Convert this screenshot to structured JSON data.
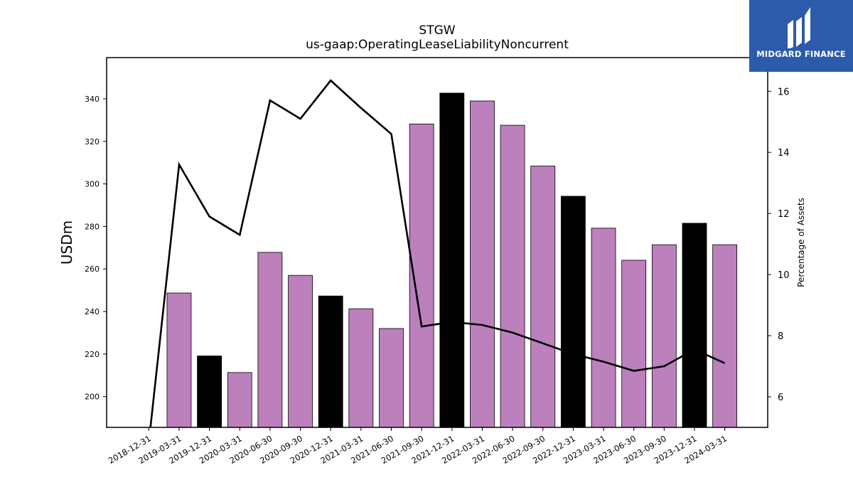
{
  "chart_data": {
    "type": "bar",
    "title": "STGW",
    "subtitle": "us-gaap:OperatingLeaseLiabilityNoncurrent",
    "ylabel": "USDm",
    "y2label": "Percentage of Assets",
    "categories": [
      "2018-12-31",
      "2019-03-31",
      "2019-12-31",
      "2020-03-31",
      "2020-06-30",
      "2020-09-30",
      "2020-12-31",
      "2021-03-31",
      "2021-06-30",
      "2021-09-30",
      "2021-12-31",
      "2022-03-31",
      "2022-06-30",
      "2022-09-30",
      "2022-12-31",
      "2023-03-31",
      "2023-06-30",
      "2023-09-30",
      "2023-12-31",
      "2024-03-31"
    ],
    "series": [
      {
        "type": "bar",
        "values": [
          null,
          248.7,
          219.1,
          211.3,
          267.8,
          257.0,
          247.3,
          241.3,
          232.0,
          328.2,
          342.7,
          339.0,
          327.6,
          308.4,
          294.2,
          279.2,
          264.1,
          271.4,
          281.5,
          271.4
        ],
        "colors": [
          "#bc80bd",
          "#bc80bd",
          "#000000",
          "#bc80bd",
          "#bc80bd",
          "#bc80bd",
          "#000000",
          "#bc80bd",
          "#bc80bd",
          "#bc80bd",
          "#000000",
          "#bc80bd",
          "#bc80bd",
          "#bc80bd",
          "#000000",
          "#bc80bd",
          "#bc80bd",
          "#bc80bd",
          "#000000",
          "#bc80bd"
        ]
      },
      {
        "type": "line",
        "axis": "right",
        "values": [
          4.5,
          13.6,
          11.9,
          11.3,
          15.7,
          15.1,
          16.35,
          15.45,
          14.6,
          8.3,
          8.45,
          8.35,
          8.1,
          7.75,
          7.4,
          7.15,
          6.85,
          7.0,
          7.55,
          7.1
        ]
      }
    ],
    "ylim": [
      185.5,
      359.4
    ],
    "y2lim": [
      5.0,
      17.1
    ],
    "yticks": [
      200,
      220,
      240,
      260,
      280,
      300,
      320,
      340
    ],
    "y2ticks": [
      6,
      8,
      10,
      12,
      14,
      16
    ],
    "colors": {
      "bar_default": "#bc80bd",
      "bar_highlight": "#000000",
      "line": "#000000"
    },
    "grid": false
  },
  "logo": {
    "text": "MIDGARD FINANCE",
    "bg": "#2c5bab"
  }
}
